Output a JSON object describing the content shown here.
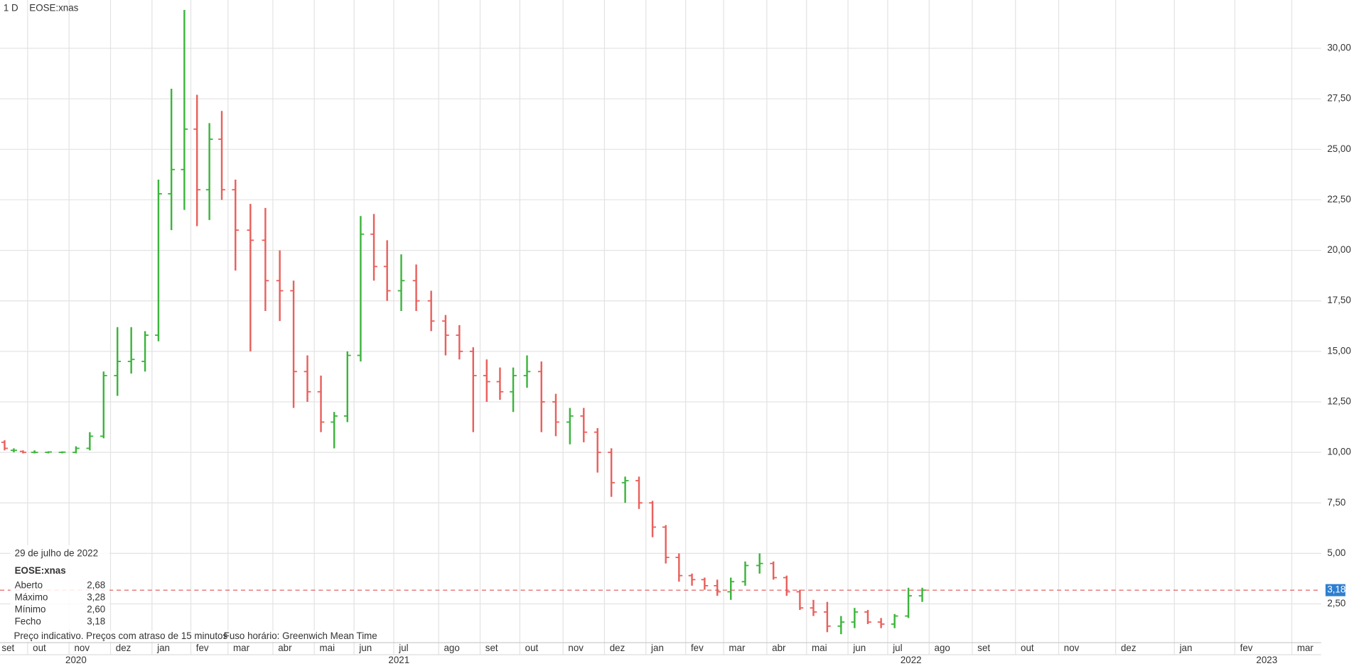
{
  "chart_data": {
    "type": "ohlc",
    "interval": "1 D",
    "title": "EOSE:xnas",
    "categories": [
      "set",
      "out",
      "nov",
      "dez",
      "jan",
      "fev",
      "mar",
      "abr",
      "mai",
      "jun",
      "jul",
      "ago",
      "set",
      "out",
      "nov",
      "dez",
      "jan",
      "fev",
      "mar",
      "abr",
      "mai",
      "jun",
      "jul",
      "ago",
      "set",
      "out",
      "nov",
      "dez",
      "jan",
      "fev",
      "mar"
    ],
    "years": [
      "2020",
      "2021",
      "2022",
      "2023"
    ],
    "up_color": "#3cb43c",
    "down_color": "#e8605c",
    "values": [
      [
        [
          10.5,
          10.6,
          10.1,
          10.2
        ],
        [
          10.1,
          10.2,
          10.0,
          10.1
        ],
        [
          10.05,
          10.1,
          9.95,
          10.0
        ]
      ],
      [
        [
          10.0,
          10.1,
          9.95,
          10.0
        ],
        [
          10.0,
          10.05,
          9.95,
          10.02
        ],
        [
          10.0,
          10.05,
          9.95,
          10.01
        ]
      ],
      [
        [
          10.0,
          10.3,
          9.95,
          10.2
        ],
        [
          10.2,
          11.0,
          10.1,
          10.8
        ],
        [
          10.8,
          14.0,
          10.7,
          13.8
        ]
      ],
      [
        [
          13.8,
          16.2,
          12.8,
          14.5
        ],
        [
          14.5,
          16.2,
          13.9,
          14.6
        ],
        [
          14.5,
          16.0,
          14.0,
          15.8
        ]
      ],
      [
        [
          15.8,
          23.5,
          15.5,
          22.8
        ],
        [
          22.8,
          28.0,
          21.0,
          24.0
        ],
        [
          24.0,
          31.9,
          22.0,
          26.0
        ]
      ],
      [
        [
          26.0,
          27.7,
          21.2,
          23.0
        ],
        [
          23.0,
          26.3,
          21.5,
          25.5
        ],
        [
          25.5,
          26.9,
          22.5,
          23.0
        ]
      ],
      [
        [
          23.0,
          23.5,
          19.0,
          21.0
        ],
        [
          21.0,
          22.3,
          15.0,
          20.5
        ],
        [
          20.5,
          22.1,
          17.0,
          18.5
        ]
      ],
      [
        [
          18.5,
          20.0,
          16.5,
          18.0
        ],
        [
          18.0,
          18.5,
          12.2,
          14.0
        ],
        [
          14.0,
          14.8,
          12.5,
          13.0
        ]
      ],
      [
        [
          13.0,
          13.8,
          11.0,
          11.5
        ],
        [
          11.5,
          12.0,
          10.2,
          11.8
        ],
        [
          11.8,
          15.0,
          11.5,
          14.8
        ]
      ],
      [
        [
          14.8,
          21.7,
          14.5,
          20.8
        ],
        [
          20.8,
          21.8,
          18.5,
          19.2
        ],
        [
          19.2,
          20.5,
          17.5,
          18.0
        ]
      ],
      [
        [
          18.0,
          19.8,
          17.0,
          18.5
        ],
        [
          18.5,
          19.3,
          17.0,
          17.5
        ],
        [
          17.5,
          18.0,
          16.0,
          16.5
        ]
      ],
      [
        [
          16.5,
          16.8,
          14.8,
          15.8
        ],
        [
          15.8,
          16.3,
          14.6,
          15.0
        ],
        [
          15.0,
          15.2,
          11.0,
          13.8
        ]
      ],
      [
        [
          13.8,
          14.6,
          12.5,
          13.5
        ],
        [
          13.5,
          14.2,
          12.6,
          13.0
        ],
        [
          13.0,
          14.2,
          12.0,
          13.8
        ]
      ],
      [
        [
          13.8,
          14.8,
          13.2,
          14.0
        ],
        [
          14.0,
          14.5,
          11.0,
          12.5
        ],
        [
          12.5,
          12.9,
          10.8,
          11.5
        ]
      ],
      [
        [
          11.5,
          12.2,
          10.4,
          11.8
        ],
        [
          11.8,
          12.2,
          10.5,
          11.0
        ],
        [
          11.0,
          11.2,
          9.0,
          10.0
        ]
      ],
      [
        [
          10.0,
          10.2,
          7.8,
          8.5
        ],
        [
          8.5,
          8.8,
          7.5,
          8.6
        ],
        [
          8.6,
          8.8,
          7.2,
          7.5
        ]
      ],
      [
        [
          7.5,
          7.6,
          5.8,
          6.3
        ],
        [
          6.3,
          6.4,
          4.5,
          4.8
        ],
        [
          4.8,
          5.0,
          3.6,
          3.9
        ]
      ],
      [
        [
          3.9,
          4.0,
          3.4,
          3.7
        ],
        [
          3.7,
          3.8,
          3.2,
          3.4
        ],
        [
          3.4,
          3.7,
          2.9,
          3.1
        ]
      ],
      [
        [
          3.1,
          3.8,
          2.7,
          3.6
        ],
        [
          3.6,
          4.6,
          3.4,
          4.4
        ],
        [
          4.4,
          5.0,
          4.0,
          4.5
        ]
      ],
      [
        [
          4.5,
          4.6,
          3.7,
          3.8
        ],
        [
          3.8,
          3.9,
          2.9,
          3.1
        ],
        [
          3.1,
          3.2,
          2.2,
          2.3
        ]
      ],
      [
        [
          2.3,
          2.7,
          1.9,
          2.1
        ],
        [
          2.1,
          2.6,
          1.1,
          1.4
        ],
        [
          1.4,
          1.9,
          1.0,
          1.6
        ]
      ],
      [
        [
          1.6,
          2.3,
          1.3,
          2.1
        ],
        [
          2.1,
          2.2,
          1.5,
          1.6
        ],
        [
          1.6,
          1.8,
          1.3,
          1.5
        ]
      ],
      [
        [
          1.5,
          2.0,
          1.3,
          1.9
        ],
        [
          1.9,
          3.3,
          1.8,
          2.9
        ],
        [
          2.9,
          3.3,
          2.6,
          3.18
        ]
      ],
      null,
      null,
      null,
      null,
      null,
      null,
      null,
      null
    ],
    "ylim": [
      0.58,
      32.39
    ],
    "yticks": [
      {
        "value": 2.5,
        "label": "2,50"
      },
      {
        "value": 5,
        "label": "5,00"
      },
      {
        "value": 7.5,
        "label": "7,50"
      },
      {
        "value": 10,
        "label": "10,00"
      },
      {
        "value": 12.5,
        "label": "12,50"
      },
      {
        "value": 15,
        "label": "15,00"
      },
      {
        "value": 17.5,
        "label": "17,50"
      },
      {
        "value": 20,
        "label": "20,00"
      },
      {
        "value": 22.5,
        "label": "22,50"
      },
      {
        "value": 25,
        "label": "25,00"
      },
      {
        "value": 27.5,
        "label": "27,50"
      },
      {
        "value": 30,
        "label": "30,00"
      }
    ],
    "grid": true,
    "last_price": {
      "value": 3.18,
      "label": "3,18"
    },
    "info": {
      "date": "29 de julho de 2022",
      "symbol": "EOSE:xnas",
      "rows": [
        [
          "Aberto",
          "2,68"
        ],
        [
          "Máximo",
          "3,28"
        ],
        [
          "Mínimo",
          "2,60"
        ],
        [
          "Fecho",
          "3,18"
        ]
      ]
    },
    "footer": [
      "Preço indicativo. Preços com atraso de 15 minutos",
      "Fuso horário: Greenwich Mean Time"
    ]
  }
}
